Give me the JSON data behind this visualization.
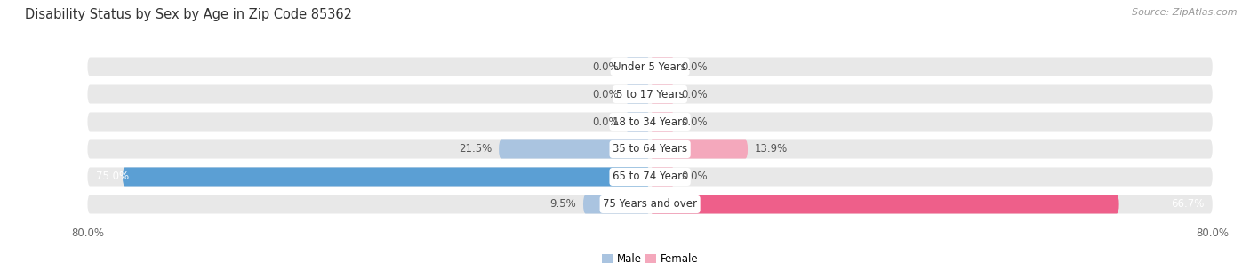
{
  "title": "Disability Status by Sex by Age in Zip Code 85362",
  "source": "Source: ZipAtlas.com",
  "categories": [
    "Under 5 Years",
    "5 to 17 Years",
    "18 to 34 Years",
    "35 to 64 Years",
    "65 to 74 Years",
    "75 Years and over"
  ],
  "male_values": [
    0.0,
    0.0,
    0.0,
    21.5,
    75.0,
    9.5
  ],
  "female_values": [
    0.0,
    0.0,
    0.0,
    13.9,
    0.0,
    66.7
  ],
  "male_color_light": "#aac4e0",
  "male_color_dark": "#5b9fd4",
  "female_color_light": "#f4a8bc",
  "female_color_dark": "#ee5f8a",
  "bar_bg_color": "#e8e8e8",
  "x_min": -80.0,
  "x_max": 80.0,
  "min_stub": 3.5,
  "legend_male": "Male",
  "legend_female": "Female",
  "title_fontsize": 10.5,
  "source_fontsize": 8,
  "label_fontsize": 8.5,
  "category_fontsize": 8.5,
  "value_fontsize": 8.5
}
